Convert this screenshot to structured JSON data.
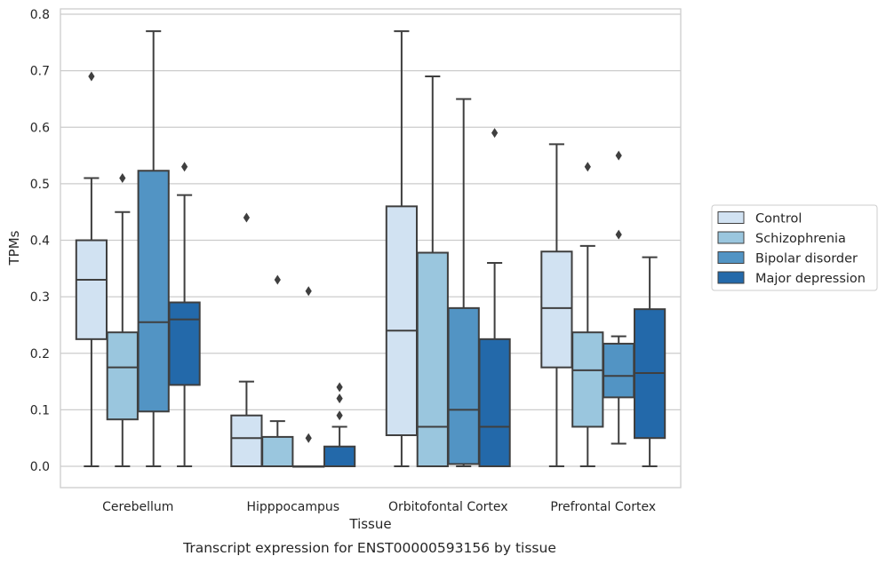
{
  "chart_data": {
    "type": "box",
    "caption": "Transcript expression for ENST00000593156 by tissue",
    "xlabel": "Tissue",
    "ylabel": "TPMs",
    "ylim": [
      -0.037,
      0.812
    ],
    "yticks": [
      "0.0",
      "0.1",
      "0.2",
      "0.3",
      "0.4",
      "0.5",
      "0.6",
      "0.7",
      "0.8"
    ],
    "grid": "horizontal",
    "legend_position": "right",
    "categories": [
      "Cerebellum",
      "Hipppocampus",
      "Orbitofontal Cortex",
      "Prefrontal Cortex"
    ],
    "series": [
      {
        "name": "Control",
        "color": "#d1e2f2",
        "boxes": [
          {
            "whisker_low": 0.0,
            "q1": 0.225,
            "median": 0.33,
            "q3": 0.4,
            "whisker_high": 0.51,
            "outliers": [
              0.69
            ]
          },
          {
            "whisker_low": 0.0,
            "q1": 0.0,
            "median": 0.05,
            "q3": 0.09,
            "whisker_high": 0.15,
            "outliers": [
              0.44
            ]
          },
          {
            "whisker_low": 0.0,
            "q1": 0.055,
            "median": 0.24,
            "q3": 0.46,
            "whisker_high": 0.77,
            "outliers": []
          },
          {
            "whisker_low": 0.0,
            "q1": 0.175,
            "median": 0.28,
            "q3": 0.38,
            "whisker_high": 0.57,
            "outliers": []
          }
        ]
      },
      {
        "name": "Schizophrenia",
        "color": "#9ac6de",
        "boxes": [
          {
            "whisker_low": 0.0,
            "q1": 0.083,
            "median": 0.175,
            "q3": 0.237,
            "whisker_high": 0.45,
            "outliers": [
              0.51
            ]
          },
          {
            "whisker_low": 0.0,
            "q1": 0.0,
            "median": 0.0,
            "q3": 0.052,
            "whisker_high": 0.08,
            "outliers": [
              0.33
            ]
          },
          {
            "whisker_low": 0.0,
            "q1": 0.0,
            "median": 0.07,
            "q3": 0.378,
            "whisker_high": 0.69,
            "outliers": []
          },
          {
            "whisker_low": 0.0,
            "q1": 0.07,
            "median": 0.17,
            "q3": 0.237,
            "whisker_high": 0.39,
            "outliers": [
              0.53
            ]
          }
        ]
      },
      {
        "name": "Bipolar disorder",
        "color": "#5294c4",
        "boxes": [
          {
            "whisker_low": 0.0,
            "q1": 0.097,
            "median": 0.255,
            "q3": 0.523,
            "whisker_high": 0.77,
            "outliers": []
          },
          {
            "whisker_low": 0.0,
            "q1": 0.0,
            "median": 0.0,
            "q3": 0.0,
            "whisker_high": 0.0,
            "outliers": [
              0.05,
              0.31
            ]
          },
          {
            "whisker_low": 0.0,
            "q1": 0.004,
            "median": 0.1,
            "q3": 0.28,
            "whisker_high": 0.65,
            "outliers": []
          },
          {
            "whisker_low": 0.04,
            "q1": 0.122,
            "median": 0.16,
            "q3": 0.217,
            "whisker_high": 0.23,
            "outliers": [
              0.41,
              0.55
            ]
          }
        ]
      },
      {
        "name": "Major depression",
        "color": "#2369aa",
        "boxes": [
          {
            "whisker_low": 0.0,
            "q1": 0.144,
            "median": 0.26,
            "q3": 0.29,
            "whisker_high": 0.48,
            "outliers": [
              0.53
            ]
          },
          {
            "whisker_low": 0.0,
            "q1": 0.0,
            "median": 0.0,
            "q3": 0.035,
            "whisker_high": 0.07,
            "outliers": [
              0.09,
              0.12,
              0.14
            ]
          },
          {
            "whisker_low": 0.0,
            "q1": 0.0,
            "median": 0.07,
            "q3": 0.225,
            "whisker_high": 0.36,
            "outliers": [
              0.59
            ]
          },
          {
            "whisker_low": 0.0,
            "q1": 0.05,
            "median": 0.165,
            "q3": 0.278,
            "whisker_high": 0.37,
            "outliers": []
          }
        ]
      }
    ]
  }
}
